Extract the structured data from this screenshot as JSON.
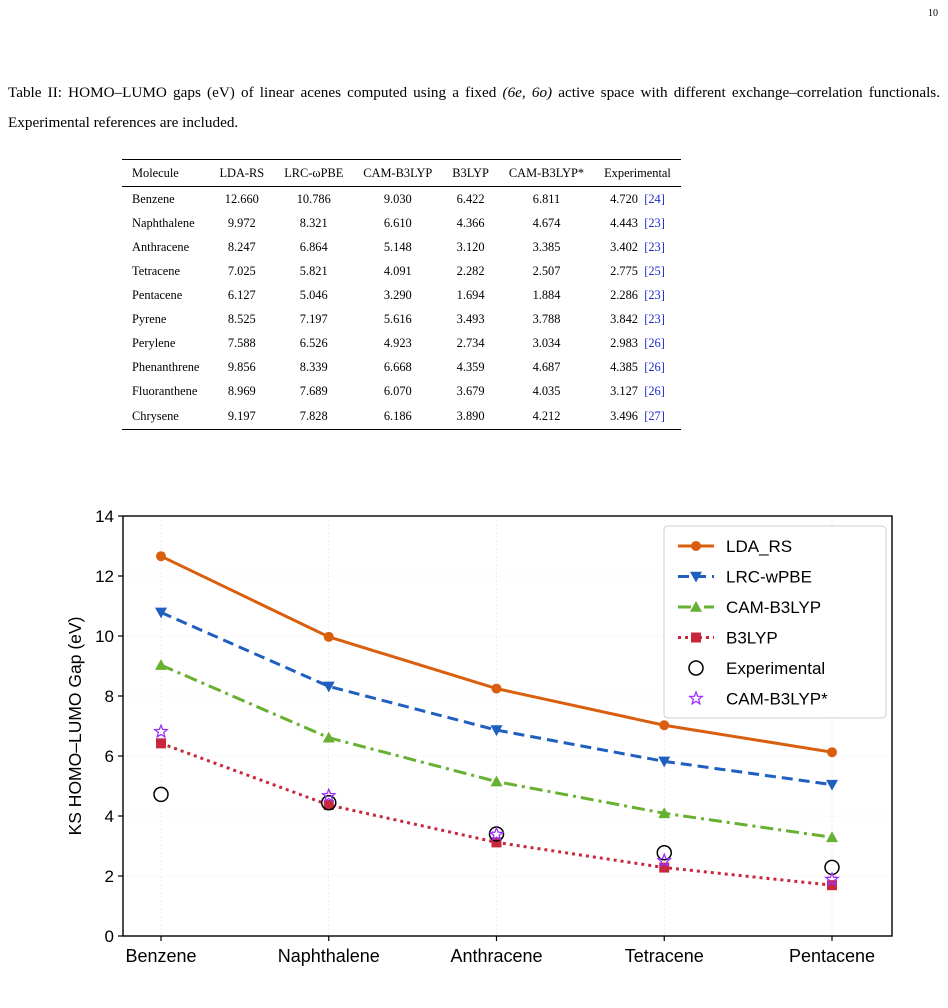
{
  "page_number": "10",
  "caption": {
    "prefix": "Table II: HOMO–LUMO gaps (eV) of linear acenes computed using a fixed ",
    "space": "(6e, 6o)",
    "suffix": " active space with different exchange–correlation functionals. Experimental references are included."
  },
  "table": {
    "headers": [
      "Molecule",
      "LDA-RS",
      "LRC-ωPBE",
      "CAM-B3LYP",
      "B3LYP",
      "CAM-B3LYP*",
      "Experimental"
    ],
    "rows": [
      [
        "Benzene",
        "12.660",
        "10.786",
        "9.030",
        "6.422",
        "6.811",
        "4.720",
        "[24]"
      ],
      [
        "Naphthalene",
        "9.972",
        "8.321",
        "6.610",
        "4.366",
        "4.674",
        "4.443",
        "[23]"
      ],
      [
        "Anthracene",
        "8.247",
        "6.864",
        "5.148",
        "3.120",
        "3.385",
        "3.402",
        "[23]"
      ],
      [
        "Tetracene",
        "7.025",
        "5.821",
        "4.091",
        "2.282",
        "2.507",
        "2.775",
        "[25]"
      ],
      [
        "Pentacene",
        "6.127",
        "5.046",
        "3.290",
        "1.694",
        "1.884",
        "2.286",
        "[23]"
      ],
      [
        "Pyrene",
        "8.525",
        "7.197",
        "5.616",
        "3.493",
        "3.788",
        "3.842",
        "[23]"
      ],
      [
        "Perylene",
        "7.588",
        "6.526",
        "4.923",
        "2.734",
        "3.034",
        "2.983",
        "[26]"
      ],
      [
        "Phenanthrene",
        "9.856",
        "8.339",
        "6.668",
        "4.359",
        "4.687",
        "4.385",
        "[26]"
      ],
      [
        "Fluoranthene",
        "8.969",
        "7.689",
        "6.070",
        "3.679",
        "4.035",
        "3.127",
        "[26]"
      ],
      [
        "Chrysene",
        "9.197",
        "7.828",
        "6.186",
        "3.890",
        "4.212",
        "3.496",
        "[27]"
      ]
    ]
  },
  "chart_data": {
    "type": "line",
    "categories": [
      "Benzene",
      "Naphthalene",
      "Anthracene",
      "Tetracene",
      "Pentacene"
    ],
    "ylabel": "KS HOMO–LUMO Gap (eV)",
    "xlabel": "",
    "ylim": [
      0,
      14
    ],
    "yticks": [
      0,
      2,
      4,
      6,
      8,
      10,
      12,
      14
    ],
    "grid": true,
    "legend_position": "top-right",
    "series": [
      {
        "name": "LDA_RS",
        "values": [
          12.66,
          9.972,
          8.247,
          7.025,
          6.127
        ],
        "color": "#d95f0e",
        "line": "solid",
        "marker": "circle"
      },
      {
        "name": "LRC-wPBE",
        "values": [
          10.786,
          8.321,
          6.864,
          5.821,
          5.046
        ],
        "color": "#1f5fbf",
        "line": "dashed",
        "marker": "triangle-down"
      },
      {
        "name": "CAM-B3LYP",
        "values": [
          9.03,
          6.61,
          5.148,
          4.091,
          3.29
        ],
        "color": "#66b032",
        "line": "dashdot",
        "marker": "triangle-up"
      },
      {
        "name": "B3LYP",
        "values": [
          6.422,
          4.366,
          3.12,
          2.282,
          1.694
        ],
        "color": "#c8283c",
        "line": "dotted",
        "marker": "square"
      },
      {
        "name": "Experimental",
        "values": [
          4.72,
          4.443,
          3.402,
          2.775,
          2.286
        ],
        "color": "#000000",
        "line": "none",
        "marker": "open-circle"
      },
      {
        "name": "CAM-B3LYP*",
        "values": [
          6.811,
          4.674,
          3.385,
          2.507,
          1.884
        ],
        "color": "#9b30ff",
        "line": "none",
        "marker": "open-star"
      }
    ]
  }
}
